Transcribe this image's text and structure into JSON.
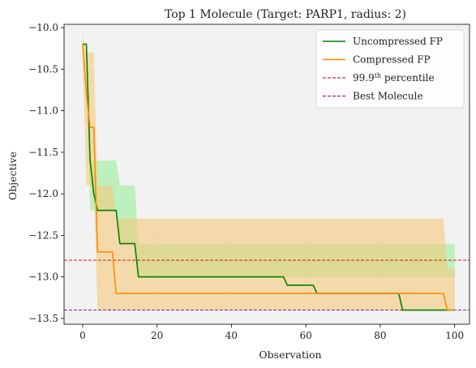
{
  "chart_data": {
    "type": "line",
    "title": "Top 1 Molecule (Target: PARP1, radius: 2)",
    "xlabel": "Observation",
    "ylabel": "Objective",
    "xlim": [
      -5,
      104
    ],
    "ylim": [
      -13.57,
      -9.96
    ],
    "xticks": [
      0,
      20,
      40,
      60,
      80,
      100
    ],
    "yticks": [
      -10.0,
      -10.5,
      -11.0,
      -11.5,
      -12.0,
      -12.5,
      -13.0,
      -13.5
    ],
    "xtick_labels": [
      "0",
      "20",
      "40",
      "60",
      "80",
      "100"
    ],
    "ytick_labels": [
      "−10.0",
      "−10.5",
      "−11.0",
      "−11.5",
      "−12.0",
      "−12.5",
      "−13.0",
      "−13.5"
    ],
    "grid": true,
    "legend_position": "top-right",
    "background": "#f2f2f2",
    "series": [
      {
        "name": "Uncompressed FP",
        "color": "#008000",
        "band_color": "#90ee90",
        "x": [
          0,
          1,
          2,
          3,
          4,
          5,
          9,
          10,
          14,
          15,
          54,
          55,
          62,
          63,
          85,
          86,
          99,
          100
        ],
        "y": [
          -10.2,
          -10.2,
          -11.6,
          -12.0,
          -12.2,
          -12.2,
          -12.2,
          -12.6,
          -12.6,
          -13.0,
          -13.0,
          -13.1,
          -13.1,
          -13.2,
          -13.2,
          -13.4,
          -13.4,
          -13.4
        ],
        "upper": [
          -10.2,
          -10.2,
          -11.6,
          -11.6,
          -11.6,
          -11.6,
          -11.6,
          -11.9,
          -11.9,
          -12.6,
          -12.6,
          -12.6,
          -12.6,
          -12.6,
          -12.6,
          -12.6,
          -12.6,
          -12.6
        ],
        "lower": [
          -10.2,
          -10.2,
          -12.2,
          -12.2,
          -12.2,
          -12.2,
          -12.2,
          -12.6,
          -12.6,
          -13.0,
          -13.0,
          -13.0,
          -13.0,
          -13.0,
          -13.0,
          -13.0,
          -13.0,
          -13.0
        ]
      },
      {
        "name": "Compressed FP",
        "color": "#ff8c00",
        "band_color": "#f5c97a",
        "x": [
          0,
          1,
          2,
          3,
          4,
          8,
          9,
          97,
          98,
          100
        ],
        "y": [
          -10.2,
          -10.8,
          -11.2,
          -11.2,
          -12.7,
          -12.7,
          -13.2,
          -13.2,
          -13.4,
          -13.4
        ],
        "upper": [
          -10.1,
          -10.3,
          -10.3,
          -10.3,
          -11.9,
          -11.9,
          -12.3,
          -12.3,
          -12.9,
          -12.9
        ],
        "lower": [
          -10.3,
          -11.9,
          -11.9,
          -11.9,
          -13.4,
          -13.4,
          -13.4,
          -13.4,
          -13.4,
          -13.4
        ]
      }
    ],
    "reference_lines": [
      {
        "name": "99.9",
        "name_sup": "th",
        "name_suffix": " percentile",
        "y": -12.8,
        "color": "#cc0000",
        "style": "dashed"
      },
      {
        "name": "Best Molecule",
        "y": -13.4,
        "color": "#800080",
        "style": "dashed"
      }
    ]
  }
}
